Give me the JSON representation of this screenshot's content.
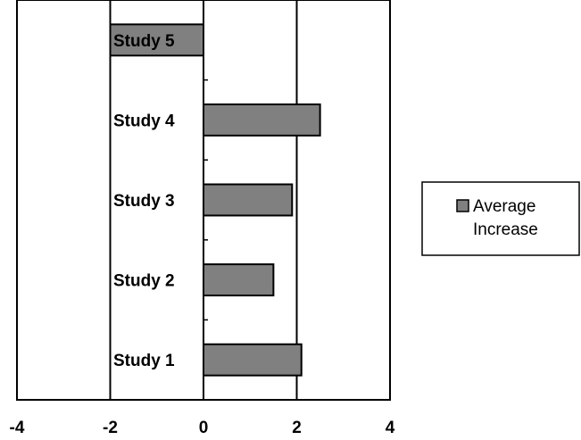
{
  "chart_data": {
    "type": "bar",
    "orientation": "horizontal",
    "categories": [
      "Study 1",
      "Study 2",
      "Study 3",
      "Study 4",
      "Study 5"
    ],
    "series": [
      {
        "name": "Average Increase",
        "values": [
          2.1,
          1.5,
          1.9,
          2.5,
          -2.0
        ]
      }
    ],
    "title": "",
    "xlabel": "",
    "ylabel": "",
    "xlim": [
      -4,
      4
    ],
    "x_ticks": [
      -4,
      -2,
      0,
      2,
      4
    ],
    "x_tick_labels": [
      "-4",
      "-2",
      "0",
      "2",
      "4"
    ],
    "grid": "vertical lines at major ticks",
    "legend_placement": "right",
    "colors": {
      "bar_fill": "#808080",
      "bar_stroke": "#000000",
      "grid": "#000000",
      "background": "#ffffff"
    }
  },
  "legend": {
    "line1": "Average",
    "line2": "Increase"
  }
}
